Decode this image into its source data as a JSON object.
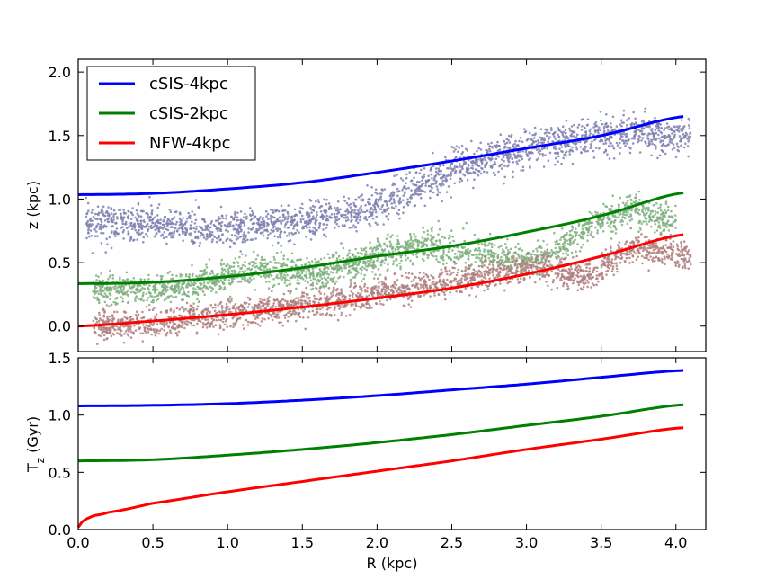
{
  "chart_data": [
    {
      "type": "line",
      "panel": "top",
      "title": "",
      "xlabel": "",
      "ylabel": "z (kpc)",
      "xlim": [
        0.0,
        4.2
      ],
      "ylim": [
        -0.2,
        2.1
      ],
      "yticks": [
        "0.0",
        "0.5",
        "1.0",
        "1.5",
        "2.0"
      ],
      "ytick_values": [
        0.0,
        0.5,
        1.0,
        1.5,
        2.0
      ],
      "legend": {
        "placement": "top-left"
      },
      "series": [
        {
          "name": "cSIS-4kpc",
          "color": "#0000ff",
          "x": [
            0.0,
            0.5,
            1.0,
            1.5,
            2.0,
            2.5,
            3.0,
            3.5,
            4.05
          ],
          "y": [
            1.035,
            1.045,
            1.08,
            1.13,
            1.21,
            1.3,
            1.4,
            1.5,
            1.65
          ]
        },
        {
          "name": "cSIS-2kpc",
          "color": "#008000",
          "x": [
            0.0,
            0.5,
            1.0,
            1.5,
            2.0,
            2.5,
            3.0,
            3.5,
            4.05
          ],
          "y": [
            0.335,
            0.345,
            0.39,
            0.46,
            0.55,
            0.63,
            0.74,
            0.87,
            1.05
          ]
        },
        {
          "name": "NFW-4kpc",
          "color": "#ff0000",
          "x": [
            0.0,
            0.5,
            1.0,
            1.5,
            2.0,
            2.5,
            3.0,
            3.5,
            4.05
          ],
          "y": [
            0.0,
            0.04,
            0.09,
            0.15,
            0.22,
            0.3,
            0.41,
            0.55,
            0.72
          ]
        }
      ],
      "scatter": [
        {
          "name": "cSIS-4kpc particles",
          "color": "#8080b0",
          "trend_x": [
            0.05,
            0.5,
            1.0,
            1.5,
            1.8,
            2.0,
            2.3,
            2.6,
            3.0,
            3.4,
            3.7,
            4.1
          ],
          "trend_y": [
            0.82,
            0.8,
            0.75,
            0.82,
            0.87,
            0.95,
            1.1,
            1.28,
            1.4,
            1.48,
            1.52,
            1.48
          ],
          "spread": 0.07
        },
        {
          "name": "cSIS-2kpc particles",
          "color": "#80b080",
          "trend_x": [
            0.1,
            0.5,
            0.8,
            1.2,
            1.6,
            2.0,
            2.3,
            2.7,
            3.0,
            3.2,
            3.5,
            3.7,
            4.0
          ],
          "trend_y": [
            0.3,
            0.28,
            0.34,
            0.45,
            0.4,
            0.55,
            0.63,
            0.57,
            0.5,
            0.6,
            0.85,
            0.92,
            0.82
          ],
          "spread": 0.06
        },
        {
          "name": "NFW-4kpc particles",
          "color": "#b08080",
          "trend_x": [
            0.1,
            0.5,
            1.0,
            1.4,
            1.8,
            2.1,
            2.5,
            2.8,
            3.1,
            3.4,
            3.7,
            4.1
          ],
          "trend_y": [
            0.0,
            0.02,
            0.1,
            0.15,
            0.2,
            0.28,
            0.35,
            0.42,
            0.47,
            0.38,
            0.62,
            0.55
          ],
          "spread": 0.055
        }
      ]
    },
    {
      "type": "line",
      "panel": "bottom",
      "title": "",
      "xlabel": "R (kpc)",
      "ylabel": "T",
      "ylabel_sub": "z",
      "ylabel_suffix": " (Gyr)",
      "xlim": [
        0.0,
        4.2
      ],
      "ylim": [
        0.0,
        1.5
      ],
      "xticks": [
        "0.0",
        "0.5",
        "1.0",
        "1.5",
        "2.0",
        "2.5",
        "3.0",
        "3.5",
        "4.0"
      ],
      "xtick_values": [
        0.0,
        0.5,
        1.0,
        1.5,
        2.0,
        2.5,
        3.0,
        3.5,
        4.0
      ],
      "yticks": [
        "0.0",
        "0.5",
        "1.0",
        "1.5"
      ],
      "ytick_values": [
        0.0,
        0.5,
        1.0,
        1.5
      ],
      "series": [
        {
          "name": "cSIS-4kpc",
          "color": "#0000ff",
          "x": [
            0.0,
            0.5,
            1.0,
            1.5,
            2.0,
            2.5,
            3.0,
            3.5,
            4.05
          ],
          "y": [
            1.08,
            1.085,
            1.1,
            1.13,
            1.17,
            1.22,
            1.27,
            1.33,
            1.39
          ]
        },
        {
          "name": "cSIS-2kpc",
          "color": "#008000",
          "x": [
            0.0,
            0.5,
            1.0,
            1.5,
            2.0,
            2.5,
            3.0,
            3.5,
            4.05
          ],
          "y": [
            0.6,
            0.61,
            0.65,
            0.7,
            0.76,
            0.83,
            0.91,
            0.99,
            1.09
          ]
        },
        {
          "name": "NFW-4kpc",
          "color": "#ff0000",
          "x": [
            0.0,
            0.02,
            0.05,
            0.1,
            0.2,
            0.5,
            1.0,
            1.5,
            2.0,
            2.5,
            3.0,
            3.5,
            4.05
          ],
          "y": [
            0.02,
            0.06,
            0.09,
            0.12,
            0.15,
            0.23,
            0.33,
            0.42,
            0.51,
            0.6,
            0.7,
            0.79,
            0.89
          ]
        }
      ]
    }
  ]
}
